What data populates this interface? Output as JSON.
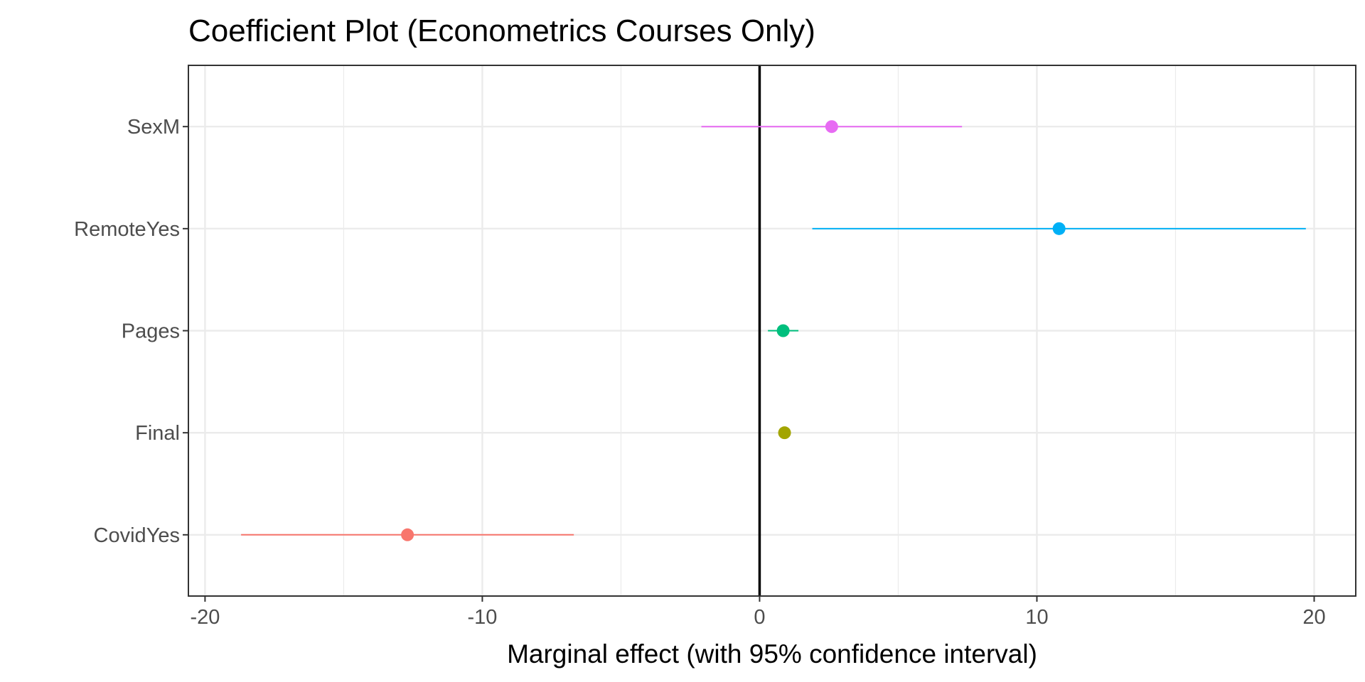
{
  "chart_data": {
    "type": "scatter",
    "title": "Coefficient Plot (Econometrics Courses Only)",
    "xlabel": "Marginal effect (with 95% confidence interval)",
    "ylabel": "",
    "xlim": [
      -20.6,
      21.5
    ],
    "x_ticks": [
      -20,
      -10,
      0,
      10,
      20
    ],
    "x_tick_labels": [
      "-20",
      "-10",
      "0",
      "10",
      "20"
    ],
    "reference_line_x": 0,
    "grid": true,
    "legend": "none",
    "categories": [
      "SexM",
      "RemoteYes",
      "Pages",
      "Final",
      "CovidYes"
    ],
    "points": [
      {
        "term": "SexM",
        "estimate": 2.6,
        "ci_low": -2.1,
        "ci_high": 7.3,
        "color": "#E76BF3"
      },
      {
        "term": "RemoteYes",
        "estimate": 10.8,
        "ci_low": 1.9,
        "ci_high": 19.7,
        "color": "#00B0F6"
      },
      {
        "term": "Pages",
        "estimate": 0.85,
        "ci_low": 0.3,
        "ci_high": 1.4,
        "color": "#00BF7D"
      },
      {
        "term": "Final",
        "estimate": 0.9,
        "ci_low": 0.85,
        "ci_high": 0.95,
        "color": "#A3A500"
      },
      {
        "term": "CovidYes",
        "estimate": -12.7,
        "ci_low": -18.7,
        "ci_high": -6.7,
        "color": "#F8766D"
      }
    ]
  }
}
